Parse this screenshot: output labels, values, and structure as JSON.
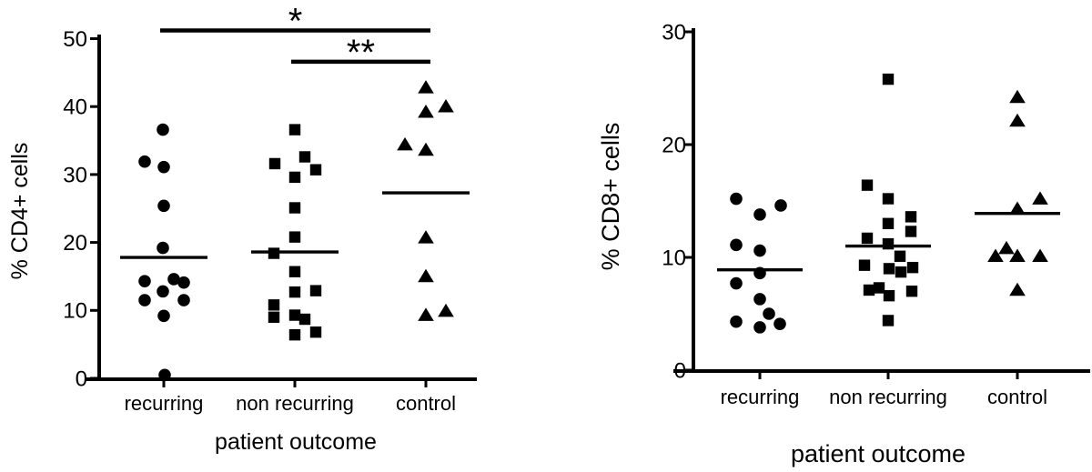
{
  "figure": {
    "background": "#ffffff",
    "ink": "#000000",
    "description": "Two column scatter plots of lymphocyte percentages by patient outcome"
  },
  "chart_data": [
    {
      "type": "scatter",
      "subtype": "column-scatter",
      "title": "",
      "ylabel": "% CD4+  cells",
      "xlabel": "patient outcome",
      "ylim": [
        0,
        50
      ],
      "yticks": [
        0,
        10,
        20,
        30,
        40,
        50
      ],
      "categories": [
        "recurring",
        "non recurring",
        "control"
      ],
      "grid": false,
      "legend": false,
      "marker_color": "#000000",
      "series": [
        {
          "name": "recurring",
          "marker": "circle",
          "mean": 17.8,
          "points": [
            [
              -1,
              36.6
            ],
            [
              -21,
              31.9
            ],
            [
              0,
              31.1
            ],
            [
              0,
              25.4
            ],
            [
              -1,
              19.2
            ],
            [
              11,
              14.6
            ],
            [
              -21,
              14.3
            ],
            [
              22,
              14.1
            ],
            [
              -1,
              12.8
            ],
            [
              -21,
              11.5
            ],
            [
              22,
              11.5
            ],
            [
              0,
              9.2
            ],
            [
              1,
              0.5
            ]
          ]
        },
        {
          "name": "non recurring",
          "marker": "square",
          "mean": 18.6,
          "points": [
            [
              0,
              36.6
            ],
            [
              11,
              32.6
            ],
            [
              -22,
              31.6
            ],
            [
              23,
              30.7
            ],
            [
              0,
              29.6
            ],
            [
              0,
              25.1
            ],
            [
              0,
              20.8
            ],
            [
              -23,
              18.4
            ],
            [
              0,
              15.7
            ],
            [
              23,
              12.9
            ],
            [
              0,
              12.7
            ],
            [
              -23,
              10.8
            ],
            [
              0,
              9.3
            ],
            [
              -23,
              9.0
            ],
            [
              11,
              8.7
            ],
            [
              23,
              6.8
            ],
            [
              0,
              6.4
            ]
          ]
        },
        {
          "name": "control",
          "marker": "triangle",
          "mean": 27.3,
          "points": [
            [
              0,
              42.8
            ],
            [
              22,
              40.0
            ],
            [
              0,
              39.2
            ],
            [
              -23,
              34.4
            ],
            [
              0,
              33.6
            ],
            [
              0,
              20.7
            ],
            [
              0,
              15.0
            ],
            [
              22,
              9.9
            ],
            [
              0,
              9.3
            ]
          ]
        }
      ],
      "significance": [
        {
          "label": "*",
          "from": "recurring",
          "to": "control",
          "y": 51.2
        },
        {
          "label": "**",
          "from": "non recurring",
          "to": "control",
          "y": 46.6
        }
      ]
    },
    {
      "type": "scatter",
      "subtype": "column-scatter",
      "title": "",
      "ylabel": "% CD8+ cells",
      "xlabel": "patient outcome",
      "ylim": [
        0,
        30
      ],
      "yticks": [
        0,
        10,
        20,
        30
      ],
      "categories": [
        "recurring",
        "non recurring",
        "control"
      ],
      "grid": false,
      "legend": false,
      "marker_color": "#000000",
      "series": [
        {
          "name": "recurring",
          "marker": "circle",
          "mean": 8.9,
          "points": [
            [
              -26,
              15.2
            ],
            [
              23,
              14.6
            ],
            [
              0,
              13.8
            ],
            [
              -26,
              11.1
            ],
            [
              0,
              10.6
            ],
            [
              0,
              8.6
            ],
            [
              -26,
              7.7
            ],
            [
              0,
              6.3
            ],
            [
              10,
              5.0
            ],
            [
              -26,
              4.3
            ],
            [
              22,
              4.1
            ],
            [
              0,
              3.8
            ]
          ]
        },
        {
          "name": "non recurring",
          "marker": "square",
          "mean": 11.0,
          "points": [
            [
              0,
              25.8
            ],
            [
              -23,
              16.4
            ],
            [
              0,
              15.2
            ],
            [
              25,
              13.6
            ],
            [
              0,
              13.0
            ],
            [
              25,
              12.3
            ],
            [
              -23,
              11.7
            ],
            [
              0,
              11.2
            ],
            [
              13,
              10.1
            ],
            [
              -26,
              9.3
            ],
            [
              27,
              9.1
            ],
            [
              1,
              9.0
            ],
            [
              14,
              8.7
            ],
            [
              -10,
              7.3
            ],
            [
              -21,
              7.1
            ],
            [
              26,
              7.0
            ],
            [
              1,
              6.6
            ],
            [
              0,
              4.4
            ]
          ]
        },
        {
          "name": "control",
          "marker": "triangle",
          "mean": 13.9,
          "points": [
            [
              0,
              24.2
            ],
            [
              0,
              22.1
            ],
            [
              25,
              15.2
            ],
            [
              0,
              14.3
            ],
            [
              -12,
              10.8
            ],
            [
              -24,
              10.1
            ],
            [
              0,
              10.1
            ],
            [
              25,
              10.1
            ],
            [
              0,
              7.1
            ]
          ]
        }
      ],
      "significance": []
    }
  ]
}
